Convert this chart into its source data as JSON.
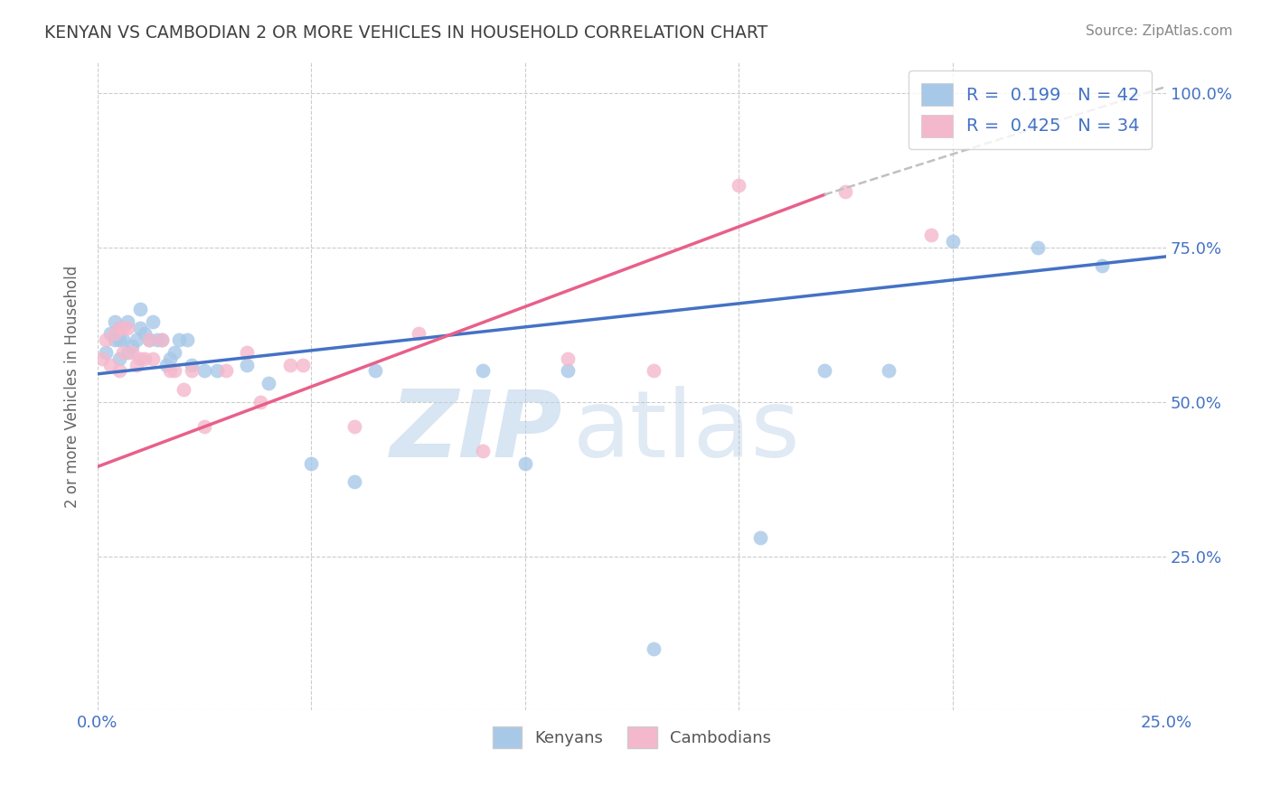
{
  "title": "KENYAN VS CAMBODIAN 2 OR MORE VEHICLES IN HOUSEHOLD CORRELATION CHART",
  "source": "Source: ZipAtlas.com",
  "ylabel": "2 or more Vehicles in Household",
  "kenyan_color": "#a8c8e8",
  "cambodian_color": "#f4b8cc",
  "kenyan_line_color": "#4472c4",
  "cambodian_line_color": "#e8608a",
  "xlim": [
    0.0,
    0.25
  ],
  "ylim": [
    0.0,
    1.05
  ],
  "x_ticks": [
    0.0,
    0.05,
    0.1,
    0.15,
    0.2,
    0.25
  ],
  "x_tick_labels": [
    "0.0%",
    "",
    "",
    "",
    "",
    "25.0%"
  ],
  "y_ticks": [
    0.0,
    0.25,
    0.5,
    0.75,
    1.0
  ],
  "y_tick_labels": [
    "",
    "25.0%",
    "50.0%",
    "75.0%",
    "100.0%"
  ],
  "kenyan_x": [
    0.002,
    0.003,
    0.004,
    0.004,
    0.005,
    0.005,
    0.005,
    0.006,
    0.007,
    0.007,
    0.008,
    0.009,
    0.01,
    0.01,
    0.011,
    0.012,
    0.013,
    0.014,
    0.015,
    0.016,
    0.017,
    0.018,
    0.019,
    0.021,
    0.022,
    0.025,
    0.028,
    0.035,
    0.04,
    0.05,
    0.06,
    0.065,
    0.09,
    0.1,
    0.11,
    0.13,
    0.155,
    0.17,
    0.185,
    0.2,
    0.22,
    0.235
  ],
  "kenyan_y": [
    0.58,
    0.61,
    0.6,
    0.63,
    0.57,
    0.6,
    0.62,
    0.6,
    0.58,
    0.63,
    0.59,
    0.6,
    0.62,
    0.65,
    0.61,
    0.6,
    0.63,
    0.6,
    0.6,
    0.56,
    0.57,
    0.58,
    0.6,
    0.6,
    0.56,
    0.55,
    0.55,
    0.56,
    0.53,
    0.4,
    0.37,
    0.55,
    0.55,
    0.4,
    0.55,
    0.1,
    0.28,
    0.55,
    0.55,
    0.76,
    0.75,
    0.72
  ],
  "cambodian_x": [
    0.001,
    0.002,
    0.003,
    0.004,
    0.005,
    0.005,
    0.006,
    0.006,
    0.007,
    0.008,
    0.009,
    0.01,
    0.011,
    0.012,
    0.013,
    0.015,
    0.017,
    0.018,
    0.02,
    0.022,
    0.025,
    0.03,
    0.035,
    0.038,
    0.045,
    0.048,
    0.06,
    0.075,
    0.09,
    0.11,
    0.13,
    0.15,
    0.175,
    0.195
  ],
  "cambodian_y": [
    0.57,
    0.6,
    0.56,
    0.61,
    0.62,
    0.55,
    0.62,
    0.58,
    0.62,
    0.58,
    0.56,
    0.57,
    0.57,
    0.6,
    0.57,
    0.6,
    0.55,
    0.55,
    0.52,
    0.55,
    0.46,
    0.55,
    0.58,
    0.5,
    0.56,
    0.56,
    0.46,
    0.61,
    0.42,
    0.57,
    0.55,
    0.85,
    0.84,
    0.77
  ],
  "kenyan_R": 0.199,
  "cambodian_R": 0.425,
  "kenyan_N": 42,
  "cambodian_N": 34,
  "scatter_size": 130,
  "grid_color": "#cccccc",
  "background_color": "#ffffff",
  "title_color": "#404040",
  "tick_label_color": "#4472c4"
}
